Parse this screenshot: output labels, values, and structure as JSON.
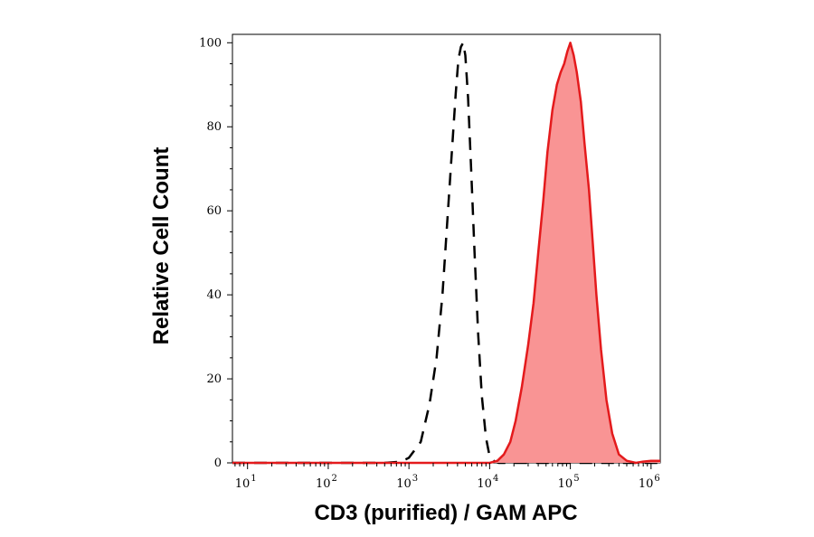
{
  "chart_data": {
    "type": "area",
    "xlabel": "CD3 (purified) / GAM APC",
    "ylabel": "Relative Cell Count",
    "x_scale": "log10",
    "xlim": [
      6.5,
      1300000
    ],
    "ylim": [
      0,
      102
    ],
    "x_ticks": [
      {
        "base": "10",
        "exp": "1",
        "value": 10
      },
      {
        "base": "10",
        "exp": "2",
        "value": 100
      },
      {
        "base": "10",
        "exp": "3",
        "value": 1000
      },
      {
        "base": "10",
        "exp": "4",
        "value": 10000
      },
      {
        "base": "10",
        "exp": "5",
        "value": 100000
      },
      {
        "base": "10",
        "exp": "6",
        "value": 1000000
      }
    ],
    "y_ticks": [
      {
        "label": "0",
        "value": 0
      },
      {
        "label": "20",
        "value": 20
      },
      {
        "label": "40",
        "value": 40
      },
      {
        "label": "60",
        "value": 60
      },
      {
        "label": "80",
        "value": 80
      },
      {
        "label": "100",
        "value": 100
      }
    ],
    "grid": false,
    "series": [
      {
        "style": "dashed",
        "color": "#000000",
        "fill": "none",
        "x": [
          6.5,
          100,
          500,
          800,
          1000,
          1400,
          1800,
          2200,
          2600,
          3000,
          3400,
          3800,
          4100,
          4400,
          4700,
          5000,
          5400,
          5900,
          6500,
          7200,
          8000,
          9000,
          10000,
          11500,
          13000,
          16000,
          1300000
        ],
        "y": [
          0,
          0,
          0,
          0.3,
          1.2,
          5,
          14,
          25,
          40,
          58,
          74,
          88,
          96,
          99,
          100,
          97,
          87,
          70,
          50,
          31,
          16,
          6,
          1.5,
          0.3,
          0,
          0,
          0
        ]
      },
      {
        "style": "filled",
        "color": "#e41a1c",
        "fill": "#f99494",
        "x": [
          6.5,
          10000,
          12500,
          15000,
          18000,
          21000,
          25000,
          30000,
          35000,
          40000,
          46000,
          52000,
          60000,
          68000,
          76000,
          84000,
          92000,
          100000,
          110000,
          120000,
          135000,
          150000,
          170000,
          190000,
          210000,
          240000,
          280000,
          330000,
          400000,
          500000,
          650000,
          800000,
          1000000,
          1300000
        ],
        "y": [
          0,
          0,
          0.5,
          2,
          5,
          10,
          18,
          28,
          38,
          50,
          62,
          74,
          84,
          90,
          93,
          95,
          98,
          100,
          97,
          93,
          86,
          76,
          65,
          52,
          40,
          27,
          15,
          7,
          2,
          0.5,
          0,
          0.3,
          0.5,
          0.5
        ]
      }
    ]
  }
}
